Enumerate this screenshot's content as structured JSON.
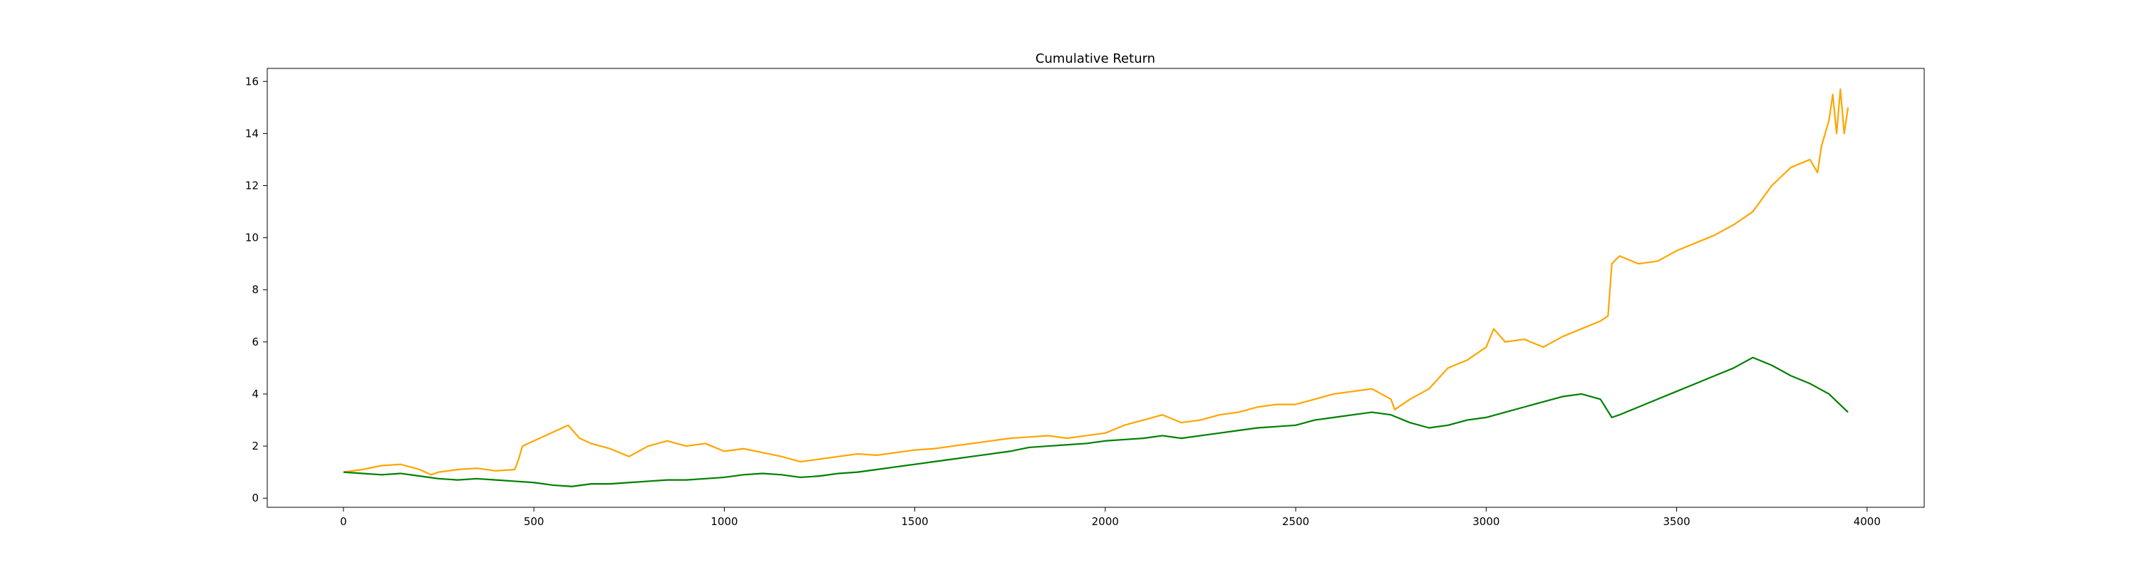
{
  "chart_data": {
    "type": "line",
    "title": "Cumulative Return",
    "xlabel": "",
    "ylabel": "",
    "xlim": [
      -200,
      4150
    ],
    "ylim": [
      -0.35,
      16.5
    ],
    "xticks": [
      0,
      500,
      1000,
      1500,
      2000,
      2500,
      3000,
      3500,
      4000
    ],
    "xtick_labels": [
      "0",
      "500",
      "1000",
      "1500",
      "2000",
      "2500",
      "3000",
      "3500",
      "4000"
    ],
    "yticks": [
      0,
      2,
      4,
      6,
      8,
      10,
      12,
      14,
      16
    ],
    "ytick_labels": [
      "0",
      "2",
      "4",
      "6",
      "8",
      "10",
      "12",
      "14",
      "16"
    ],
    "grid": false,
    "legend": "none",
    "series": [
      {
        "color": "#ffa500",
        "x": [
          0,
          50,
          100,
          150,
          200,
          230,
          250,
          300,
          350,
          400,
          450,
          460,
          470,
          500,
          530,
          560,
          590,
          620,
          650,
          700,
          750,
          800,
          850,
          900,
          950,
          1000,
          1050,
          1100,
          1150,
          1200,
          1250,
          1300,
          1350,
          1400,
          1450,
          1500,
          1550,
          1600,
          1650,
          1700,
          1750,
          1800,
          1850,
          1900,
          1950,
          2000,
          2050,
          2100,
          2150,
          2200,
          2250,
          2300,
          2350,
          2400,
          2450,
          2500,
          2550,
          2600,
          2650,
          2700,
          2750,
          2760,
          2800,
          2850,
          2900,
          2950,
          3000,
          3020,
          3050,
          3100,
          3150,
          3200,
          3250,
          3300,
          3320,
          3330,
          3350,
          3400,
          3450,
          3500,
          3550,
          3600,
          3650,
          3700,
          3750,
          3800,
          3850,
          3870,
          3880,
          3900,
          3910,
          3920,
          3930,
          3940,
          3950
        ],
        "y": [
          1.0,
          1.1,
          1.25,
          1.3,
          1.1,
          0.9,
          1.0,
          1.1,
          1.15,
          1.05,
          1.1,
          1.5,
          2.0,
          2.2,
          2.4,
          2.6,
          2.8,
          2.3,
          2.1,
          1.9,
          1.6,
          2.0,
          2.2,
          2.0,
          2.1,
          1.8,
          1.9,
          1.75,
          1.6,
          1.4,
          1.5,
          1.6,
          1.7,
          1.65,
          1.75,
          1.85,
          1.9,
          2.0,
          2.1,
          2.2,
          2.3,
          2.35,
          2.4,
          2.3,
          2.4,
          2.5,
          2.8,
          3.0,
          3.2,
          2.9,
          3.0,
          3.2,
          3.3,
          3.5,
          3.6,
          3.6,
          3.8,
          4.0,
          4.1,
          4.2,
          3.8,
          3.4,
          3.8,
          4.2,
          5.0,
          5.3,
          5.8,
          6.5,
          6.0,
          6.1,
          5.8,
          6.2,
          6.5,
          6.8,
          7.0,
          9.0,
          9.3,
          9.0,
          9.1,
          9.5,
          9.8,
          10.1,
          10.5,
          11.0,
          12.0,
          12.7,
          13.0,
          12.5,
          13.5,
          14.5,
          15.5,
          14.0,
          15.7,
          14.0,
          15.0
        ]
      },
      {
        "color": "#008000",
        "x": [
          0,
          50,
          100,
          150,
          200,
          250,
          300,
          350,
          400,
          450,
          500,
          550,
          600,
          650,
          700,
          750,
          800,
          850,
          900,
          950,
          1000,
          1050,
          1100,
          1150,
          1200,
          1250,
          1300,
          1350,
          1400,
          1450,
          1500,
          1550,
          1600,
          1650,
          1700,
          1750,
          1800,
          1850,
          1900,
          1950,
          2000,
          2050,
          2100,
          2150,
          2200,
          2250,
          2300,
          2350,
          2400,
          2450,
          2500,
          2550,
          2600,
          2650,
          2700,
          2750,
          2800,
          2850,
          2900,
          2950,
          3000,
          3050,
          3100,
          3150,
          3200,
          3250,
          3300,
          3330,
          3350,
          3400,
          3450,
          3500,
          3550,
          3600,
          3650,
          3700,
          3750,
          3800,
          3850,
          3900,
          3950
        ],
        "y": [
          1.0,
          0.95,
          0.9,
          0.95,
          0.85,
          0.75,
          0.7,
          0.75,
          0.7,
          0.65,
          0.6,
          0.5,
          0.45,
          0.55,
          0.55,
          0.6,
          0.65,
          0.7,
          0.7,
          0.75,
          0.8,
          0.9,
          0.95,
          0.9,
          0.8,
          0.85,
          0.95,
          1.0,
          1.1,
          1.2,
          1.3,
          1.4,
          1.5,
          1.6,
          1.7,
          1.8,
          1.95,
          2.0,
          2.05,
          2.1,
          2.2,
          2.25,
          2.3,
          2.4,
          2.3,
          2.4,
          2.5,
          2.6,
          2.7,
          2.75,
          2.8,
          3.0,
          3.1,
          3.2,
          3.3,
          3.2,
          2.9,
          2.7,
          2.8,
          3.0,
          3.1,
          3.3,
          3.5,
          3.7,
          3.9,
          4.0,
          3.8,
          3.1,
          3.2,
          3.5,
          3.8,
          4.1,
          4.4,
          4.7,
          5.0,
          5.4,
          5.1,
          4.7,
          4.4,
          4.0,
          3.3
        ]
      }
    ]
  }
}
